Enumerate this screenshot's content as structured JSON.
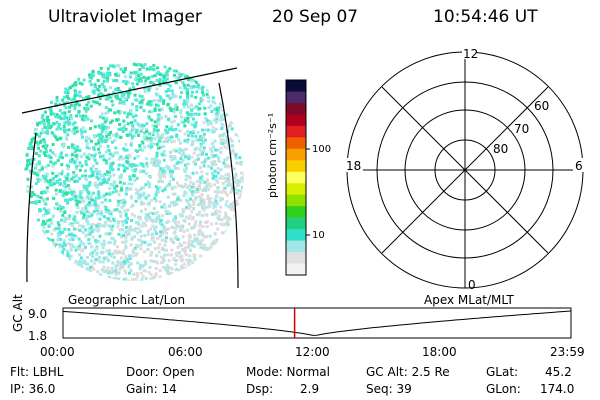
{
  "header": {
    "title": "Ultraviolet Imager",
    "date": "20 Sep 07",
    "time": "10:54:46 UT"
  },
  "colorbar": {
    "label": "photon cm⁻²s⁻¹",
    "ticks": [
      "100",
      "10"
    ],
    "scale": "log",
    "colors": [
      "#0b0b3a",
      "#4a2a6a",
      "#7a0a2a",
      "#b00020",
      "#e02020",
      "#f06000",
      "#f8a000",
      "#f8d000",
      "#ffff60",
      "#d8f000",
      "#90e000",
      "#30d020",
      "#20d080",
      "#30e0c8",
      "#a0e8e8",
      "#e0e0e0",
      "#f2f2f2"
    ]
  },
  "polar": {
    "mlt_labels": {
      "top": "12",
      "left": "18",
      "right": "6",
      "bottom": "0"
    },
    "lat_labels": [
      "60",
      "70",
      "80"
    ]
  },
  "timeline": {
    "left_label": "Geographic Lat/Lon",
    "right_label": "Apex MLat/MLT",
    "y_axis_label": "GC Alt",
    "y_ticks": [
      "9.0",
      "1.8"
    ],
    "x_ticks": [
      "00:00",
      "06:00",
      "12:00",
      "18:00",
      "23:59"
    ],
    "current_time_fraction": 0.456,
    "orbit_min_fraction": 0.495
  },
  "status": {
    "flt": "Flt: LBHL",
    "ip": "IP: 36.0",
    "door": "Door: Open",
    "gain": "Gain: 14",
    "mode": "Mode: Normal",
    "dsp_label": "Dsp:",
    "dsp_value": "2.9",
    "gc_alt": "GC Alt: 2.5 Re",
    "seq": "Seq: 39",
    "glat_label": "GLat:",
    "glat_value": "45.2",
    "glon_label": "GLon:",
    "glon_value": "174.0"
  },
  "image_colors": {
    "dense": "#30e0a0",
    "medium": "#50e8d8",
    "light": "#a8e8e8",
    "faint": "#dcdcdc"
  }
}
